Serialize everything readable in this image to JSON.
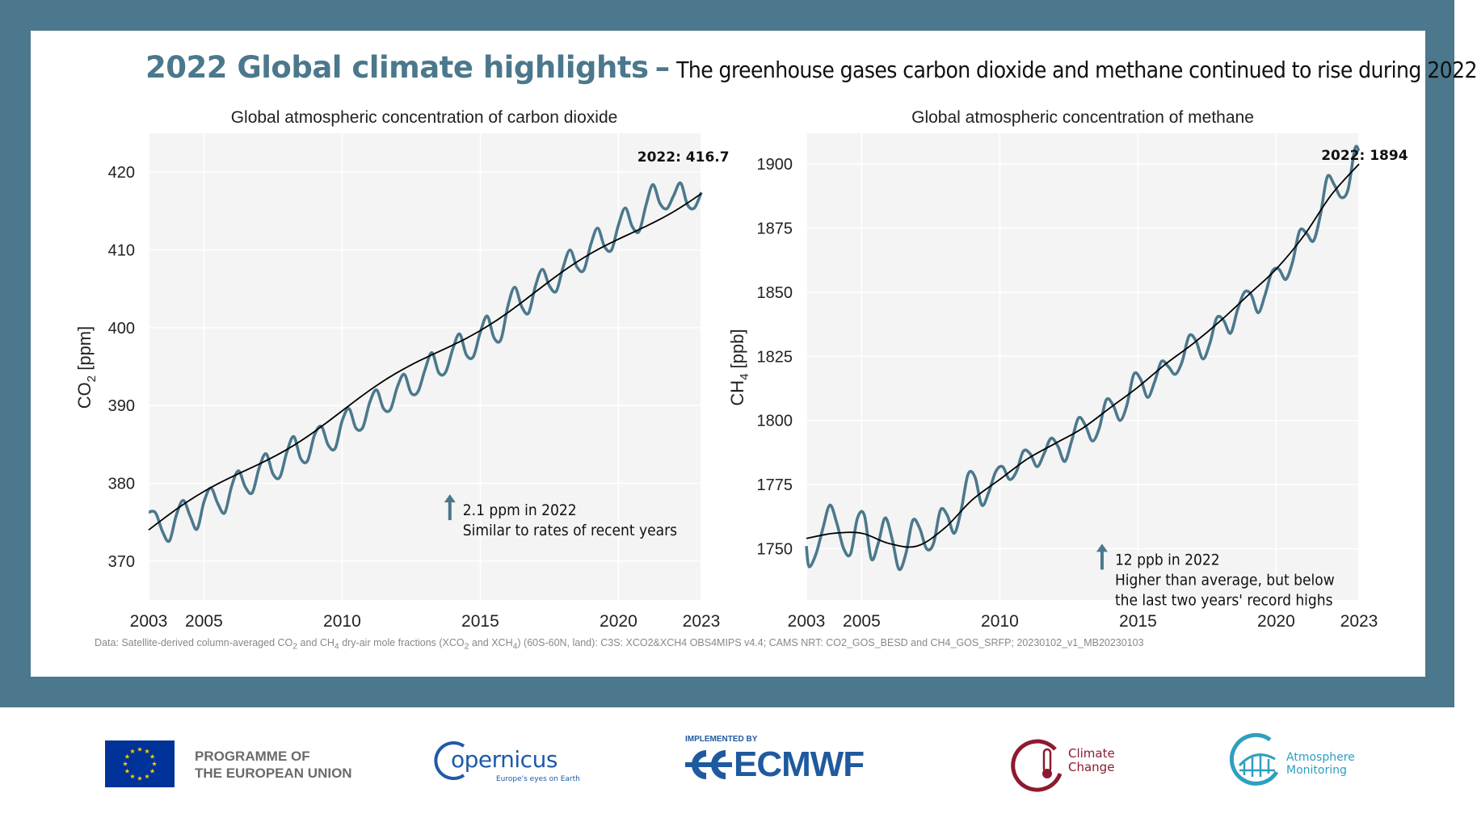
{
  "header": {
    "title": "2022 Global climate highlights",
    "dash": "–",
    "subtitle": "The greenhouse gases carbon dioxide and methane continued to rise during 2022"
  },
  "source_note": {
    "p1": "Data: Satellite-derived column-averaged CO",
    "p2": " and CH",
    "p3": " dry-air mole fractions (XCO",
    "p4": " and XCH",
    "p5": ") (60S-60N, land): C3S: XCO2&XCH4 OBS4MIPS v4.4; CAMS NRT: CO2_GOS_BESD and CH4_GOS_SRFP; 20230102_v1_MB20230103",
    "sub2": "2",
    "sub4": "4"
  },
  "footer": {
    "eu_line1": "PROGRAMME OF",
    "eu_line2": "THE EUROPEAN UNION",
    "copernicus": "opernicus",
    "copernicus_tag": "Europe's eyes on Earth",
    "ecmwf_top": "IMPLEMENTED BY",
    "ecmwf": "ECMWF",
    "climate_line1": "Climate",
    "climate_line2": "Change",
    "atmos_line1": "Atmosphere",
    "atmos_line2": "Monitoring"
  },
  "colors": {
    "frame": "#4b788c",
    "series_monthly": "#4b788c",
    "series_trend": "#000000",
    "plot_bg": "#f4f4f4",
    "eu_blue": "#003399",
    "eu_star": "#ffcc00",
    "copernicus_blue": "#1e5aa8",
    "ecmwf_blue": "#1f5a9e",
    "climate_red": "#8c1b2f",
    "atmos_cyan": "#2f9fc0"
  },
  "chart_data": [
    {
      "type": "line",
      "title": "Global atmospheric concentration of carbon dioxide",
      "ylabel_main": "CO",
      "ylabel_sub": "2",
      "ylabel_unit": " [ppm]",
      "xlim": [
        2003,
        2023
      ],
      "ylim": [
        365,
        425
      ],
      "xticks": [
        2003,
        2005,
        2010,
        2015,
        2020,
        2023
      ],
      "yticks": [
        370,
        380,
        390,
        400,
        410,
        420
      ],
      "grid": true,
      "trend": {
        "start": 374.0,
        "end": 417.7
      },
      "seasonal_amplitude": 2.8,
      "series": [
        {
          "kind": "monthly",
          "x": [
            2003.0,
            2003.25,
            2003.5,
            2003.75,
            2004.0,
            2004.25,
            2004.5,
            2004.75,
            2005.0,
            2005.25,
            2005.5,
            2005.75,
            2006.0,
            2006.25,
            2006.5,
            2006.75,
            2007.0,
            2007.25,
            2007.5,
            2007.75,
            2008.0,
            2008.25,
            2008.5,
            2008.75,
            2009.0,
            2009.25,
            2009.5,
            2009.75,
            2010.0,
            2010.25,
            2010.5,
            2010.75,
            2011.0,
            2011.25,
            2011.5,
            2011.75,
            2012.0,
            2012.25,
            2012.5,
            2012.75,
            2013.0,
            2013.25,
            2013.5,
            2013.75,
            2014.0,
            2014.25,
            2014.5,
            2014.75,
            2015.0,
            2015.25,
            2015.5,
            2015.75,
            2016.0,
            2016.25,
            2016.5,
            2016.75,
            2017.0,
            2017.25,
            2017.5,
            2017.75,
            2018.0,
            2018.25,
            2018.5,
            2018.75,
            2019.0,
            2019.25,
            2019.5,
            2019.75,
            2020.0,
            2020.25,
            2020.5,
            2020.75,
            2021.0,
            2021.25,
            2021.5,
            2021.75,
            2022.0,
            2022.25,
            2022.5,
            2022.75,
            2023.0
          ],
          "y": [
            376.3,
            376.2,
            373.8,
            372.6,
            375.9,
            377.8,
            375.8,
            374.1,
            377.6,
            379.4,
            377.4,
            376.2,
            379.6,
            381.6,
            379.5,
            378.8,
            382.0,
            383.8,
            381.2,
            380.8,
            384.0,
            386.0,
            383.2,
            382.9,
            386.2,
            387.3,
            384.9,
            384.5,
            388.0,
            389.6,
            387.1,
            387.2,
            390.4,
            392.0,
            389.6,
            389.5,
            392.4,
            394.0,
            391.6,
            391.8,
            394.6,
            396.8,
            394.2,
            394.3,
            397.2,
            399.2,
            396.5,
            396.3,
            399.4,
            401.5,
            398.7,
            398.5,
            402.8,
            405.2,
            402.7,
            401.9,
            405.4,
            407.5,
            405.4,
            404.7,
            407.8,
            410.0,
            407.8,
            407.4,
            410.7,
            412.8,
            410.4,
            410.0,
            413.2,
            415.4,
            413.0,
            412.4,
            415.8,
            418.4,
            416.0,
            415.3,
            417.0,
            418.6,
            415.8,
            415.4,
            417.4
          ]
        },
        {
          "kind": "trend"
        }
      ],
      "end_label": {
        "text": "2022: 416.7",
        "x": 2022.9,
        "y": 416.7
      },
      "annotation": {
        "line1": "2.1 ppm in 2022",
        "line2": "Similar to rates of recent years",
        "x": 2013.9,
        "y": 376.3
      }
    },
    {
      "type": "line",
      "title": "Global atmospheric concentration of methane",
      "ylabel_main": "CH",
      "ylabel_sub": "4",
      "ylabel_unit": " [ppb]",
      "xlim": [
        2003,
        2023
      ],
      "ylim": [
        1730,
        1912
      ],
      "xticks": [
        2003,
        2005,
        2010,
        2015,
        2020,
        2023
      ],
      "yticks": [
        1750,
        1775,
        1800,
        1825,
        1850,
        1875,
        1900
      ],
      "grid": true,
      "series": [
        {
          "kind": "monthly",
          "x": [
            2003.0,
            2003.1,
            2003.35,
            2003.6,
            2003.85,
            2004.1,
            2004.35,
            2004.6,
            2004.85,
            2005.1,
            2005.35,
            2005.6,
            2005.85,
            2006.1,
            2006.35,
            2006.6,
            2006.85,
            2007.1,
            2007.35,
            2007.6,
            2007.85,
            2008.1,
            2008.35,
            2008.6,
            2008.85,
            2009.1,
            2009.35,
            2009.6,
            2009.85,
            2010.1,
            2010.35,
            2010.6,
            2010.85,
            2011.1,
            2011.35,
            2011.6,
            2011.85,
            2012.1,
            2012.35,
            2012.6,
            2012.85,
            2013.1,
            2013.35,
            2013.6,
            2013.85,
            2014.1,
            2014.35,
            2014.6,
            2014.85,
            2015.1,
            2015.35,
            2015.6,
            2015.85,
            2016.1,
            2016.35,
            2016.6,
            2016.85,
            2017.1,
            2017.35,
            2017.6,
            2017.85,
            2018.1,
            2018.35,
            2018.6,
            2018.85,
            2019.1,
            2019.35,
            2019.6,
            2019.85,
            2020.1,
            2020.35,
            2020.6,
            2020.85,
            2021.1,
            2021.35,
            2021.6,
            2021.85,
            2022.1,
            2022.35,
            2022.6,
            2022.85,
            2023.0
          ],
          "y": [
            1751,
            1743,
            1748,
            1758,
            1767,
            1760,
            1750,
            1748,
            1762,
            1763,
            1746,
            1752,
            1762,
            1754,
            1742,
            1748,
            1761,
            1758,
            1750,
            1752,
            1765,
            1763,
            1756,
            1765,
            1779,
            1778,
            1767,
            1772,
            1780,
            1782,
            1777,
            1780,
            1788,
            1787,
            1782,
            1787,
            1793,
            1790,
            1784,
            1792,
            1801,
            1798,
            1792,
            1797,
            1808,
            1806,
            1800,
            1806,
            1818,
            1816,
            1809,
            1815,
            1823,
            1821,
            1818,
            1823,
            1833,
            1831,
            1824,
            1830,
            1840,
            1839,
            1834,
            1843,
            1850,
            1849,
            1842,
            1849,
            1858,
            1859,
            1855,
            1862,
            1874,
            1873,
            1870,
            1880,
            1895,
            1892,
            1887,
            1890,
            1906,
            1905
          ]
        },
        {
          "kind": "trend",
          "x": [
            2003,
            2004,
            2005,
            2006,
            2007,
            2008,
            2009,
            2010,
            2011,
            2012,
            2013,
            2014,
            2015,
            2016,
            2017,
            2018,
            2019,
            2020,
            2021,
            2022,
            2023
          ],
          "y": [
            1754,
            1756,
            1756,
            1752,
            1751,
            1758,
            1769,
            1777,
            1785,
            1791,
            1797,
            1805,
            1813,
            1822,
            1830,
            1839,
            1849,
            1859,
            1872,
            1888,
            1900
          ]
        }
      ],
      "end_label": {
        "text": "2022: 1894",
        "x": 2022.85,
        "y": 1894
      },
      "annotation": {
        "line1": "12 ppb in 2022",
        "line2": "Higher than average, but below",
        "line3": "the last two years' record highs",
        "x": 2013.7,
        "y": 1745
      }
    }
  ]
}
